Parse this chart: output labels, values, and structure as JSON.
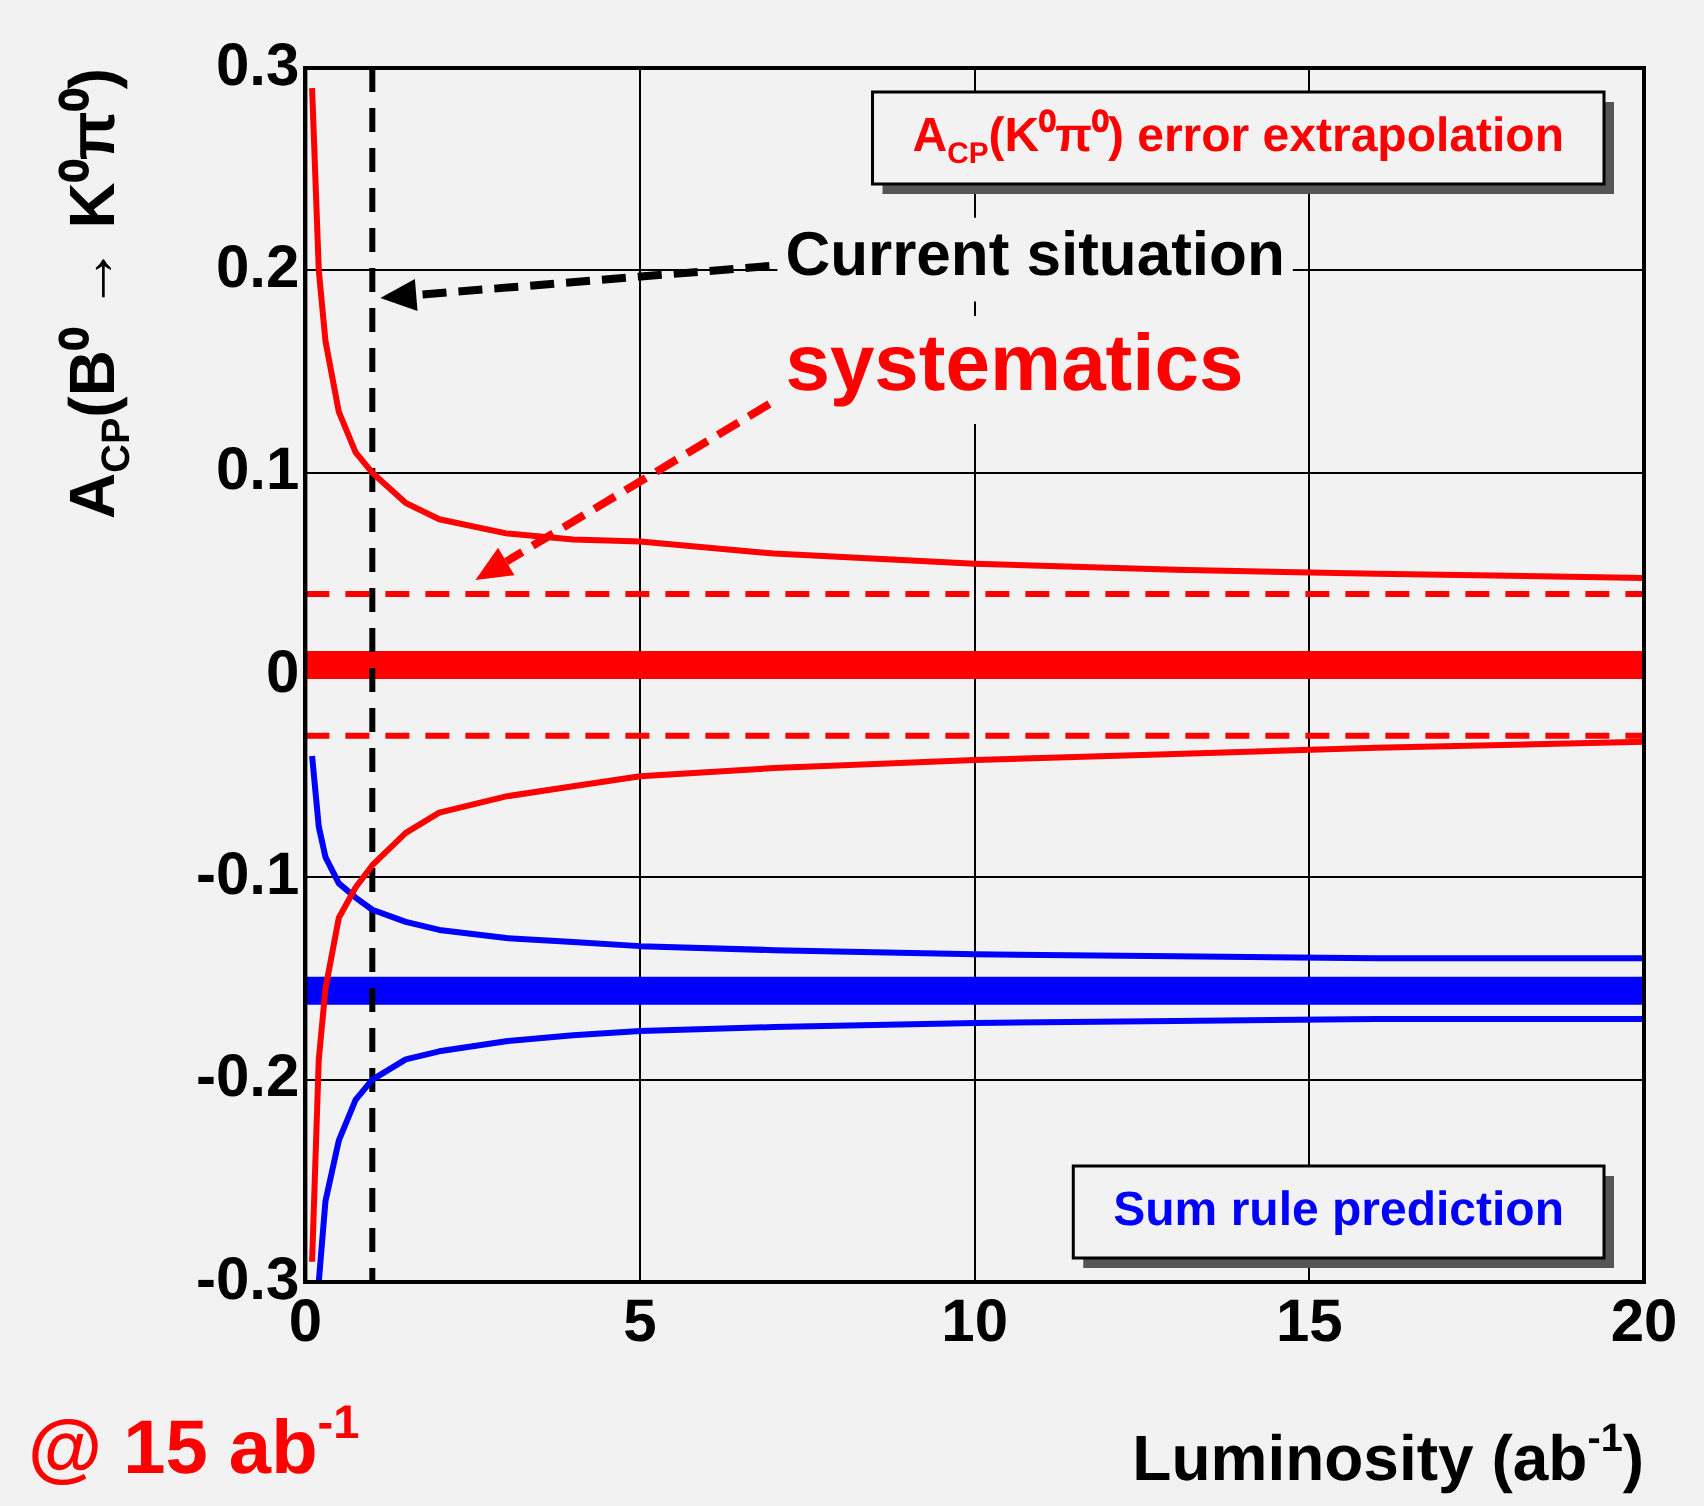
{
  "chart_data": {
    "type": "line",
    "xlabel": "Luminosity (ab$^{-1}$)",
    "ylabel": "A$_{CP}$(B⁰ → K⁰π⁰)",
    "xlim": [
      0,
      20
    ],
    "xticks": [
      0,
      5,
      10,
      15,
      20
    ],
    "ylim": [
      -0.3,
      0.3
    ],
    "yticks": [
      -0.3,
      -0.2,
      -0.1,
      0,
      0.1,
      0.2,
      0.3
    ],
    "grid": true,
    "marker": "none",
    "legend": "top right",
    "series": [
      {
        "name": "A$_{CP}$(K⁰π⁰) error extrapolation",
        "color": "#ff0000",
        "x": [
          0.1,
          0.2,
          0.3,
          0.5,
          0.75,
          1,
          1.5,
          2,
          3,
          4,
          5,
          7,
          10,
          13,
          16,
          20
        ],
        "values": [
          0.29,
          0.2,
          0.165,
          0.13,
          0.11,
          0.1,
          0.085,
          0.077,
          0.07,
          0.067,
          0.066,
          0.06,
          0.055,
          0.052,
          0.05,
          0.048
        ]
      },
      {
        "color": "#ff0000",
        "x": [
          0.1,
          0.2,
          0.3,
          0.5,
          0.75,
          1,
          1.5,
          2,
          3,
          4,
          5,
          7,
          10,
          13,
          16,
          20
        ],
        "values": [
          -0.29,
          -0.19,
          -0.155,
          -0.12,
          -0.105,
          -0.094,
          -0.078,
          -0.068,
          -0.06,
          -0.055,
          -0.05,
          -0.046,
          -0.042,
          -0.039,
          -0.036,
          -0.033
        ]
      },
      {
        "name": "Sum rule prediction",
        "color": "#0000ff",
        "x": [
          0.1,
          0.2,
          0.3,
          0.5,
          0.75,
          1,
          1.5,
          2,
          3,
          4,
          5,
          7,
          10,
          13,
          16,
          20
        ],
        "values": [
          -0.04,
          -0.075,
          -0.09,
          -0.103,
          -0.11,
          -0.116,
          -0.122,
          -0.126,
          -0.13,
          -0.132,
          -0.134,
          -0.136,
          -0.138,
          -0.139,
          -0.14,
          -0.14
        ]
      },
      {
        "color": "#0000ff",
        "x": [
          0.2,
          0.3,
          0.5,
          0.75,
          1,
          1.5,
          2,
          3,
          4,
          5,
          7,
          10,
          13,
          16,
          20
        ],
        "values": [
          -0.3,
          -0.26,
          -0.23,
          -0.21,
          -0.2,
          -0.19,
          -0.186,
          -0.181,
          -0.178,
          -0.176,
          -0.174,
          -0.172,
          -0.171,
          -0.17,
          -0.17
        ]
      }
    ],
    "ref_lines": [
      {
        "axis": "y",
        "value": 0.005,
        "color": "#ff0000",
        "line_style": "solid"
      },
      {
        "axis": "y",
        "value": 0.04,
        "color": "#ff0000",
        "line_style": "dashed"
      },
      {
        "axis": "y",
        "value": -0.03,
        "color": "#ff0000",
        "line_style": "dashed"
      },
      {
        "axis": "y",
        "value": -0.156,
        "color": "#0000ff",
        "line_style": "solid"
      },
      {
        "axis": "x",
        "value": 1,
        "color": "#000000",
        "line_style": "dashed"
      }
    ],
    "annotations": [
      "Current situation",
      "systematics",
      "@ 15 ab$^{-1}$"
    ]
  }
}
